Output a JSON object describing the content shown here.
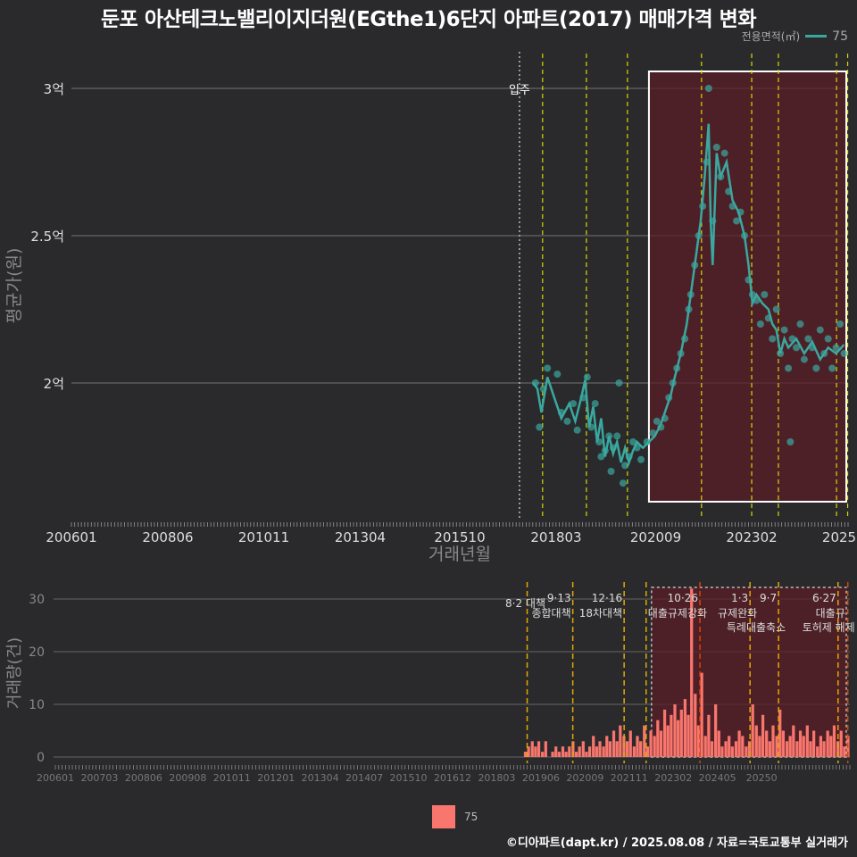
{
  "title": "둔포 아산테크노밸리이지더원(EGthe1)6단지 아파트(2017) 매매가격 변화",
  "legend_top": {
    "label": "전용면적(㎡)",
    "value": "75",
    "color": "#3aa8a0"
  },
  "legend_bottom": {
    "value": "75",
    "color": "#f8766d"
  },
  "credit": "©디아파트(dapt.kr) / 2025.08.08 / 자료=국토교통부 실거래가",
  "chart_data": [
    {
      "type": "scatter",
      "name": "price",
      "title": "둔포 아산테크노밸리이지더원(EGthe1)6단지 아파트(2017) 매매가격 변화",
      "xlabel": "거래년월",
      "ylabel": "평균가(원)",
      "x_ticks": [
        "200601",
        "200806",
        "201011",
        "201304",
        "201510",
        "201803",
        "202009",
        "202302",
        "2025"
      ],
      "x_tick_dates": [
        2006.0,
        2008.42,
        2010.83,
        2013.25,
        2015.75,
        2018.17,
        2020.67,
        2023.08,
        2025.5
      ],
      "y_ticks": [
        {
          "label": "2억",
          "value": 2.0
        },
        {
          "label": "2.5억",
          "value": 2.5
        },
        {
          "label": "3억",
          "value": 3.0
        }
      ],
      "ylim": [
        1.5,
        3.1
      ],
      "xlim": [
        2006.0,
        2025.5
      ],
      "move_in_label": "입주",
      "move_in_date": 2017.25,
      "policy_lines": [
        2017.83,
        2018.93,
        2019.96,
        2021.82,
        2023.08,
        2023.75,
        2025.21,
        2025.49
      ],
      "highlight_range": [
        2020.5,
        2025.5
      ],
      "series_color": "#3aa8a0",
      "line": [
        [
          2017.6,
          2.0
        ],
        [
          2017.7,
          1.98
        ],
        [
          2017.8,
          1.9
        ],
        [
          2017.95,
          2.02
        ],
        [
          2018.1,
          1.96
        ],
        [
          2018.3,
          1.88
        ],
        [
          2018.5,
          1.93
        ],
        [
          2018.65,
          1.87
        ],
        [
          2018.8,
          1.95
        ],
        [
          2018.9,
          2.01
        ],
        [
          2019.0,
          1.85
        ],
        [
          2019.1,
          1.92
        ],
        [
          2019.2,
          1.8
        ],
        [
          2019.3,
          1.88
        ],
        [
          2019.4,
          1.75
        ],
        [
          2019.5,
          1.82
        ],
        [
          2019.6,
          1.76
        ],
        [
          2019.7,
          1.8
        ],
        [
          2019.8,
          1.73
        ],
        [
          2019.9,
          1.78
        ],
        [
          2020.0,
          1.73
        ],
        [
          2020.1,
          1.77
        ],
        [
          2020.2,
          1.8
        ],
        [
          2020.35,
          1.78
        ],
        [
          2020.5,
          1.8
        ],
        [
          2020.65,
          1.82
        ],
        [
          2020.8,
          1.86
        ],
        [
          2020.95,
          1.92
        ],
        [
          2021.05,
          1.96
        ],
        [
          2021.15,
          2.02
        ],
        [
          2021.3,
          2.1
        ],
        [
          2021.45,
          2.2
        ],
        [
          2021.6,
          2.35
        ],
        [
          2021.7,
          2.45
        ],
        [
          2021.8,
          2.55
        ],
        [
          2021.9,
          2.7
        ],
        [
          2022.0,
          2.88
        ],
        [
          2022.05,
          2.55
        ],
        [
          2022.1,
          2.4
        ],
        [
          2022.2,
          2.78
        ],
        [
          2022.3,
          2.7
        ],
        [
          2022.45,
          2.75
        ],
        [
          2022.6,
          2.62
        ],
        [
          2022.75,
          2.58
        ],
        [
          2022.9,
          2.5
        ],
        [
          2023.0,
          2.4
        ],
        [
          2023.1,
          2.27
        ],
        [
          2023.2,
          2.3
        ],
        [
          2023.35,
          2.27
        ],
        [
          2023.5,
          2.25
        ],
        [
          2023.6,
          2.2
        ],
        [
          2023.7,
          2.18
        ],
        [
          2023.8,
          2.1
        ],
        [
          2023.9,
          2.15
        ],
        [
          2024.0,
          2.12
        ],
        [
          2024.2,
          2.15
        ],
        [
          2024.4,
          2.1
        ],
        [
          2024.6,
          2.14
        ],
        [
          2024.8,
          2.08
        ],
        [
          2025.0,
          2.12
        ],
        [
          2025.2,
          2.1
        ],
        [
          2025.4,
          2.13
        ]
      ],
      "points": [
        [
          2017.65,
          2.0
        ],
        [
          2017.75,
          1.85
        ],
        [
          2017.85,
          1.98
        ],
        [
          2017.95,
          2.05
        ],
        [
          2018.2,
          2.03
        ],
        [
          2018.3,
          1.9
        ],
        [
          2018.45,
          1.87
        ],
        [
          2018.6,
          1.93
        ],
        [
          2018.7,
          1.84
        ],
        [
          2018.85,
          1.95
        ],
        [
          2018.95,
          2.02
        ],
        [
          2019.05,
          1.85
        ],
        [
          2019.15,
          1.93
        ],
        [
          2019.25,
          1.8
        ],
        [
          2019.3,
          1.75
        ],
        [
          2019.4,
          1.77
        ],
        [
          2019.5,
          1.82
        ],
        [
          2019.55,
          1.7
        ],
        [
          2019.6,
          1.78
        ],
        [
          2019.7,
          1.82
        ],
        [
          2019.75,
          2.0
        ],
        [
          2019.85,
          1.66
        ],
        [
          2019.9,
          1.72
        ],
        [
          2020.0,
          1.75
        ],
        [
          2020.1,
          1.8
        ],
        [
          2020.2,
          1.78
        ],
        [
          2020.3,
          1.74
        ],
        [
          2020.45,
          1.8
        ],
        [
          2020.6,
          1.83
        ],
        [
          2020.7,
          1.87
        ],
        [
          2020.8,
          1.85
        ],
        [
          2020.9,
          1.88
        ],
        [
          2021.0,
          1.95
        ],
        [
          2021.1,
          2.0
        ],
        [
          2021.2,
          2.05
        ],
        [
          2021.3,
          2.1
        ],
        [
          2021.4,
          2.15
        ],
        [
          2021.5,
          2.25
        ],
        [
          2021.55,
          2.3
        ],
        [
          2021.65,
          2.4
        ],
        [
          2021.75,
          2.5
        ],
        [
          2021.85,
          2.6
        ],
        [
          2021.95,
          2.75
        ],
        [
          2022.0,
          3.0
        ],
        [
          2022.1,
          2.55
        ],
        [
          2022.2,
          2.8
        ],
        [
          2022.3,
          2.7
        ],
        [
          2022.4,
          2.78
        ],
        [
          2022.5,
          2.65
        ],
        [
          2022.6,
          2.6
        ],
        [
          2022.7,
          2.55
        ],
        [
          2022.8,
          2.58
        ],
        [
          2022.9,
          2.5
        ],
        [
          2023.0,
          2.35
        ],
        [
          2023.1,
          2.3
        ],
        [
          2023.2,
          2.28
        ],
        [
          2023.3,
          2.2
        ],
        [
          2023.4,
          2.3
        ],
        [
          2023.5,
          2.22
        ],
        [
          2023.6,
          2.15
        ],
        [
          2023.7,
          2.25
        ],
        [
          2023.8,
          2.1
        ],
        [
          2023.9,
          2.18
        ],
        [
          2024.0,
          2.05
        ],
        [
          2024.05,
          1.8
        ],
        [
          2024.1,
          2.15
        ],
        [
          2024.2,
          2.12
        ],
        [
          2024.3,
          2.2
        ],
        [
          2024.4,
          2.08
        ],
        [
          2024.5,
          2.15
        ],
        [
          2024.6,
          2.12
        ],
        [
          2024.7,
          2.05
        ],
        [
          2024.8,
          2.18
        ],
        [
          2024.9,
          2.1
        ],
        [
          2025.0,
          2.15
        ],
        [
          2025.1,
          2.05
        ],
        [
          2025.2,
          2.12
        ],
        [
          2025.3,
          2.2
        ],
        [
          2025.4,
          2.1
        ]
      ]
    },
    {
      "type": "bar",
      "name": "volume",
      "ylabel": "거래량(건)",
      "y_ticks": [
        0,
        10,
        20,
        30
      ],
      "ylim": [
        0,
        33
      ],
      "x_ticks": [
        "200601",
        "200703",
        "200806",
        "200908",
        "201011",
        "201201",
        "201304",
        "201407",
        "201510",
        "201612",
        "201803",
        "201906",
        "202009",
        "202111",
        "202302",
        "202405",
        "20250"
      ],
      "series_color": "#f8766d",
      "highlight_range": [
        2020.5,
        2025.5
      ],
      "policy_annotations": [
        {
          "date": 2017.58,
          "label": "8·2 대책",
          "label2": "",
          "color": "#e0a800"
        },
        {
          "date": 2018.7,
          "label": "9·13",
          "label2": "종합대책",
          "color": "#e0a800"
        },
        {
          "date": 2019.96,
          "label": "12·16",
          "label2": "18차대책",
          "color": "#e0a800"
        },
        {
          "date": 2020.5,
          "label": "",
          "label2": "",
          "color": "#e0a800"
        },
        {
          "date": 2021.82,
          "label": "10·26",
          "label2": "대출규제강화",
          "color": "#e04000"
        },
        {
          "date": 2023.05,
          "label": "1·3",
          "label2": "규제완화",
          "color": "#e0a800"
        },
        {
          "date": 2023.75,
          "label": "9·7",
          "label2": "특례대출축소",
          "color": "#e0a800"
        },
        {
          "date": 2025.21,
          "label": "6·27",
          "label2": "대출규",
          "color": "#e0a800"
        },
        {
          "date": 2025.45,
          "label": "",
          "label2": "토허제 해제",
          "color": "#e04000"
        }
      ],
      "bars": [
        [
          2017.5,
          1
        ],
        [
          2017.58,
          2
        ],
        [
          2017.67,
          3
        ],
        [
          2017.75,
          2
        ],
        [
          2017.83,
          3
        ],
        [
          2017.92,
          1
        ],
        [
          2018.0,
          3
        ],
        [
          2018.17,
          1
        ],
        [
          2018.25,
          2
        ],
        [
          2018.33,
          1
        ],
        [
          2018.42,
          2
        ],
        [
          2018.5,
          1
        ],
        [
          2018.58,
          2
        ],
        [
          2018.67,
          3
        ],
        [
          2018.75,
          1
        ],
        [
          2018.83,
          2
        ],
        [
          2018.92,
          3
        ],
        [
          2019.0,
          1
        ],
        [
          2019.08,
          2
        ],
        [
          2019.17,
          4
        ],
        [
          2019.25,
          2
        ],
        [
          2019.33,
          3
        ],
        [
          2019.42,
          2
        ],
        [
          2019.5,
          4
        ],
        [
          2019.58,
          3
        ],
        [
          2019.67,
          5
        ],
        [
          2019.75,
          3
        ],
        [
          2019.83,
          6
        ],
        [
          2019.92,
          4
        ],
        [
          2020.0,
          3
        ],
        [
          2020.08,
          5
        ],
        [
          2020.17,
          2
        ],
        [
          2020.25,
          4
        ],
        [
          2020.33,
          3
        ],
        [
          2020.42,
          6
        ],
        [
          2020.5,
          2
        ],
        [
          2020.58,
          5
        ],
        [
          2020.67,
          4
        ],
        [
          2020.75,
          7
        ],
        [
          2020.83,
          5
        ],
        [
          2020.92,
          9
        ],
        [
          2021.0,
          6
        ],
        [
          2021.08,
          8
        ],
        [
          2021.17,
          10
        ],
        [
          2021.25,
          7
        ],
        [
          2021.33,
          9
        ],
        [
          2021.42,
          11
        ],
        [
          2021.5,
          8
        ],
        [
          2021.58,
          32
        ],
        [
          2021.67,
          12
        ],
        [
          2021.75,
          6
        ],
        [
          2021.83,
          16
        ],
        [
          2021.92,
          4
        ],
        [
          2022.0,
          8
        ],
        [
          2022.08,
          3
        ],
        [
          2022.17,
          10
        ],
        [
          2022.25,
          5
        ],
        [
          2022.33,
          2
        ],
        [
          2022.42,
          3
        ],
        [
          2022.5,
          4
        ],
        [
          2022.58,
          2
        ],
        [
          2022.67,
          3
        ],
        [
          2022.75,
          5
        ],
        [
          2022.83,
          4
        ],
        [
          2022.92,
          2
        ],
        [
          2023.0,
          3
        ],
        [
          2023.08,
          10
        ],
        [
          2023.17,
          6
        ],
        [
          2023.25,
          4
        ],
        [
          2023.33,
          8
        ],
        [
          2023.42,
          5
        ],
        [
          2023.5,
          3
        ],
        [
          2023.58,
          6
        ],
        [
          2023.67,
          4
        ],
        [
          2023.75,
          9
        ],
        [
          2023.83,
          5
        ],
        [
          2023.92,
          3
        ],
        [
          2024.0,
          4
        ],
        [
          2024.08,
          6
        ],
        [
          2024.17,
          3
        ],
        [
          2024.25,
          5
        ],
        [
          2024.33,
          4
        ],
        [
          2024.42,
          6
        ],
        [
          2024.5,
          3
        ],
        [
          2024.58,
          5
        ],
        [
          2024.67,
          2
        ],
        [
          2024.75,
          4
        ],
        [
          2024.83,
          3
        ],
        [
          2024.92,
          5
        ],
        [
          2025.0,
          4
        ],
        [
          2025.08,
          6
        ],
        [
          2025.17,
          3
        ],
        [
          2025.25,
          5
        ],
        [
          2025.33,
          2
        ],
        [
          2025.42,
          4
        ]
      ]
    }
  ]
}
